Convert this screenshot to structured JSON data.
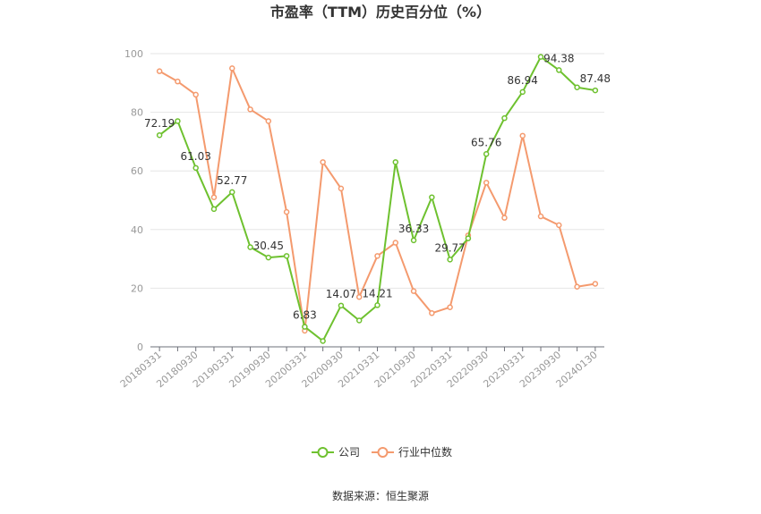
{
  "chart_data": {
    "type": "line",
    "title": "市盈率（TTM）历史百分位（%）",
    "source": "数据来源：恒生聚源",
    "ylim": [
      0,
      100
    ],
    "yticks": [
      0,
      20,
      40,
      60,
      80,
      100
    ],
    "grid": true,
    "legend_position": "bottom-center",
    "x": [
      "20180331",
      "20180630",
      "20180930",
      "20181231",
      "20190331",
      "20190630",
      "20190930",
      "20191231",
      "20200331",
      "20200630",
      "20200930",
      "20201231",
      "20210331",
      "20210630",
      "20210930",
      "20211231",
      "20220331",
      "20220630",
      "20220930",
      "20221231",
      "20230331",
      "20230630",
      "20230930",
      "20231231",
      "20240130"
    ],
    "x_tick_labels": [
      "20180331",
      "20180930",
      "20190331",
      "20190930",
      "20200331",
      "20200930",
      "20210331",
      "20210930",
      "20220331",
      "20220930",
      "20230331",
      "20230930",
      "20240130"
    ],
    "series": [
      {
        "name": "公司",
        "color": "#6ec12f",
        "values": [
          72.19,
          77,
          61.03,
          47,
          52.77,
          34,
          30.45,
          31,
          6.83,
          2,
          14.07,
          9,
          14.21,
          63,
          36.33,
          51,
          29.77,
          37,
          65.76,
          78,
          86.94,
          98.9,
          94.38,
          88.5,
          87.48
        ],
        "labels": {
          "0": "72.19",
          "2": "61.03",
          "4": "52.77",
          "6": "30.45",
          "8": "6.83",
          "10": "14.07",
          "12": "14.21",
          "14": "36.33",
          "16": "29.77",
          "18": "65.76",
          "20": "86.94",
          "22": "94.38",
          "24": "87.48"
        }
      },
      {
        "name": "行业中位数",
        "color": "#f49a6e",
        "values": [
          94,
          90.5,
          86,
          51,
          95,
          81,
          77,
          46,
          5.5,
          63,
          54,
          17,
          31,
          35.5,
          19,
          11.5,
          13.5,
          38,
          56,
          44,
          72,
          44.5,
          41.5,
          20.5,
          21.5
        ]
      }
    ]
  }
}
